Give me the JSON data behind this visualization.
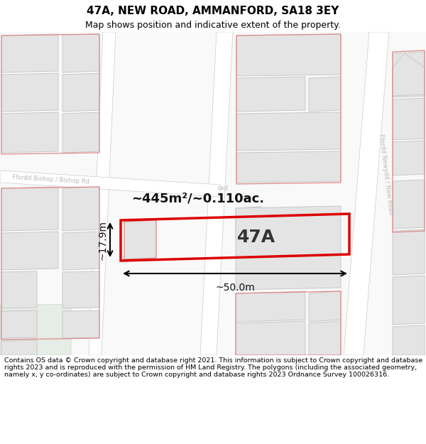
{
  "title": "47A, NEW ROAD, AMMANFORD, SA18 3EY",
  "subtitle": "Map shows position and indicative extent of the property.",
  "footer": "Contains OS data © Crown copyright and database right 2021. This information is subject to Crown copyright and database rights 2023 and is reproduced with the permission of HM Land Registry. The polygons (including the associated geometry, namely x, y co-ordinates) are subject to Crown copyright and database rights 2023 Ordnance Survey 100026316.",
  "area_label": "~445m²/~0.110ac.",
  "width_label": "~50.0m",
  "height_label": "~17.9m",
  "plot_label": "47A",
  "bg_color": "#ffffff",
  "road_fill": "#ffffff",
  "building_fill": "#e4e4e4",
  "building_stroke": "#c8c8c8",
  "pink_stroke": "#e08888",
  "red_stroke": "#dd0000",
  "road_label_color": "#bbbbbb",
  "green_fill": "#e6ede6",
  "title_fontsize": 11,
  "subtitle_fontsize": 9,
  "footer_fontsize": 6.8,
  "label_fontsize": 10,
  "plot_fontsize": 18,
  "area_fontsize": 13
}
